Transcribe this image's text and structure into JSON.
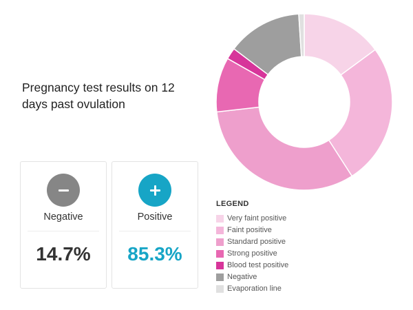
{
  "title": "Pregnancy test results on 12 days past ovulation",
  "cards": {
    "negative": {
      "label": "Negative",
      "value": "14.7%",
      "icon": "minus-icon",
      "color": "#868686"
    },
    "positive": {
      "label": "Positive",
      "value": "85.3%",
      "icon": "plus-icon",
      "color": "#17a5c6"
    }
  },
  "legend_title": "LEGEND",
  "chart_data": {
    "type": "pie",
    "donut": true,
    "title": "",
    "categories": [
      "Very faint positive",
      "Faint positive",
      "Standard positive",
      "Strong positive",
      "Blood test positive",
      "Negative",
      "Evaporation line"
    ],
    "values": [
      14.9,
      26.0,
      32.3,
      10.0,
      2.1,
      13.7,
      1.0
    ],
    "colors": [
      "#f7d4e8",
      "#f4b6da",
      "#ee9fcc",
      "#e868b2",
      "#d7359a",
      "#9e9e9e",
      "#e0e0e0"
    ],
    "legend_position": "bottom-right"
  }
}
